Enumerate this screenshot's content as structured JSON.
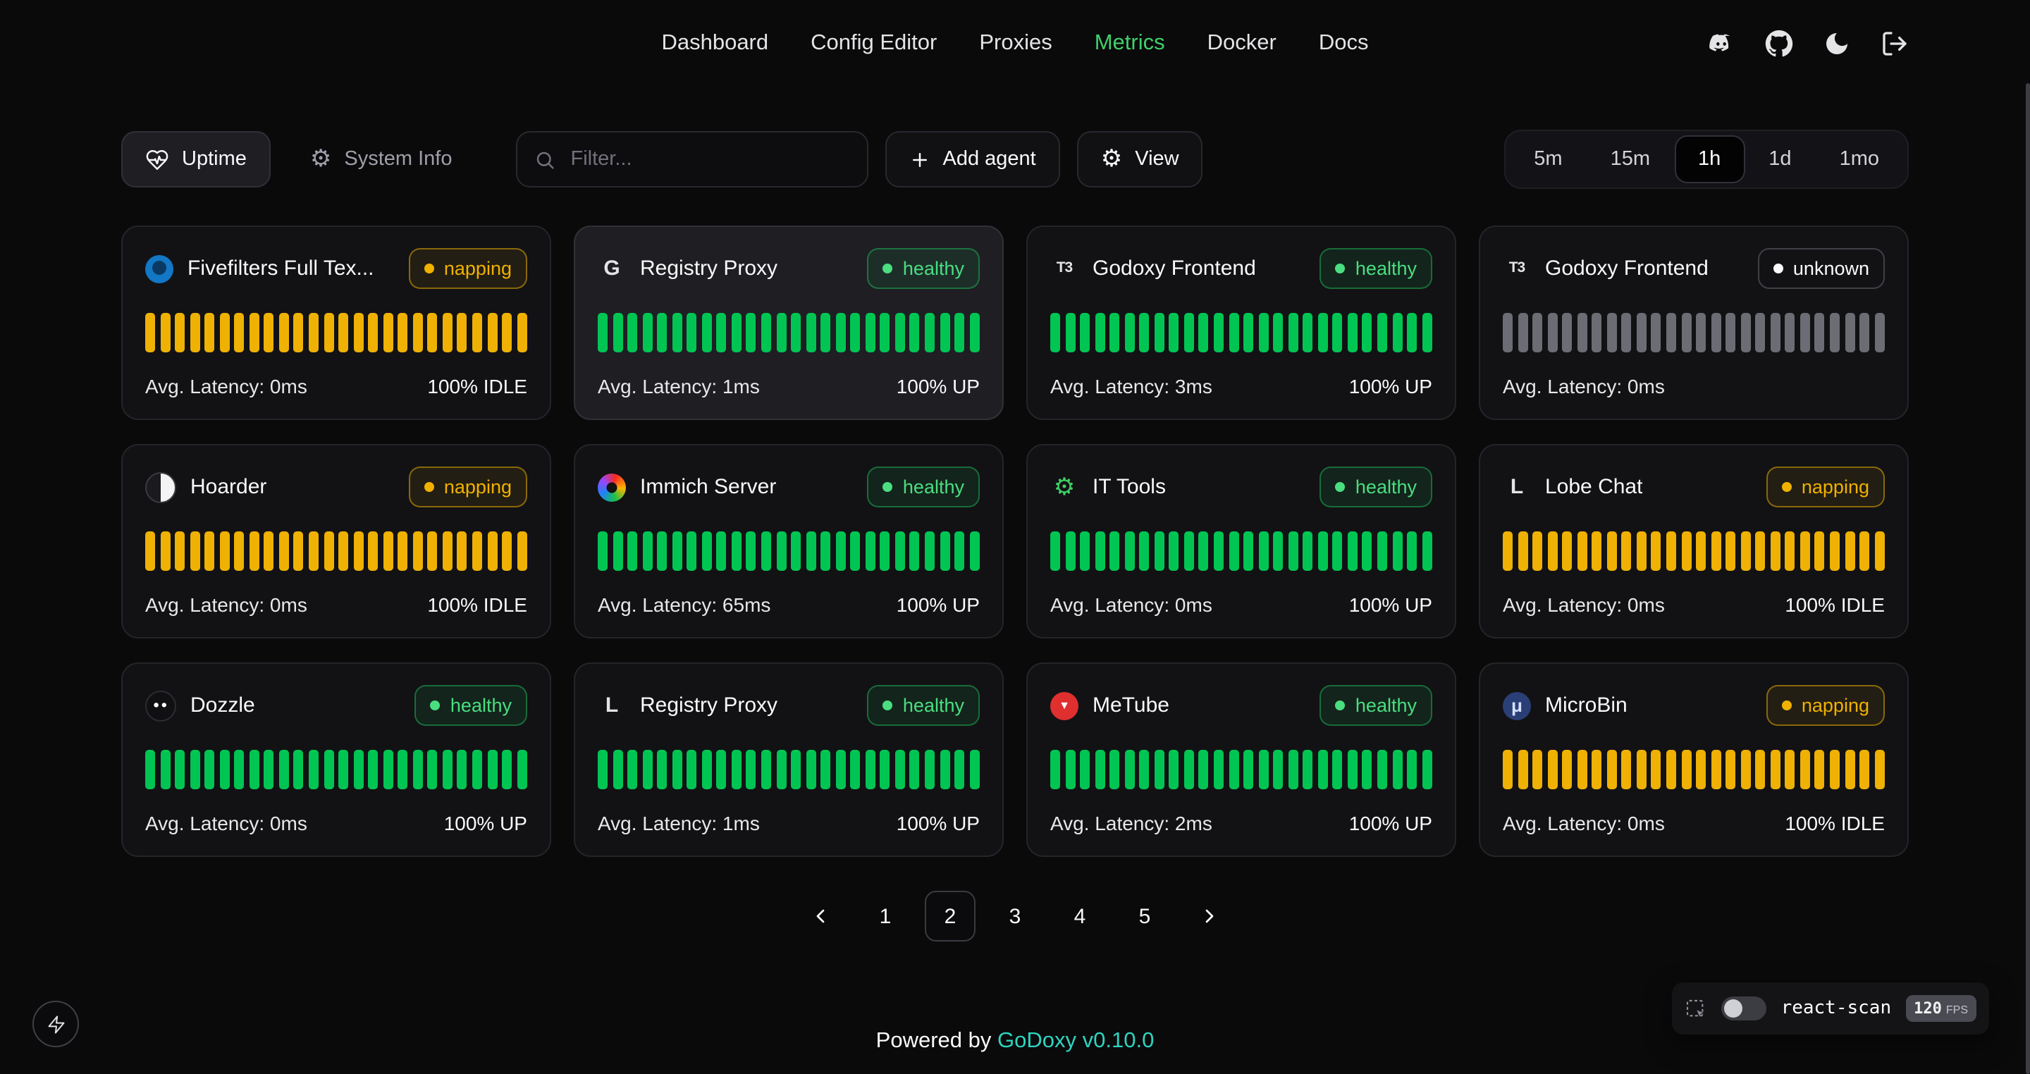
{
  "nav": {
    "items": [
      {
        "label": "Dashboard",
        "active": false
      },
      {
        "label": "Config Editor",
        "active": false
      },
      {
        "label": "Proxies",
        "active": false
      },
      {
        "label": "Metrics",
        "active": true
      },
      {
        "label": "Docker",
        "active": false
      },
      {
        "label": "Docs",
        "active": false
      }
    ],
    "icons": [
      "discord-icon",
      "github-icon",
      "theme-toggle-moon-icon",
      "logout-icon"
    ],
    "active_color": "#3fd06b"
  },
  "toolbar": {
    "tabs": [
      {
        "label": "Uptime",
        "icon": "heart-pulse-icon",
        "active": true
      },
      {
        "label": "System Info",
        "icon": "gear-icon",
        "active": false
      }
    ],
    "filter_placeholder": "Filter...",
    "add_agent_label": "Add agent",
    "view_label": "View",
    "time_ranges": [
      {
        "label": "5m",
        "active": false
      },
      {
        "label": "15m",
        "active": false
      },
      {
        "label": "1h",
        "active": true
      },
      {
        "label": "1d",
        "active": false
      },
      {
        "label": "1mo",
        "active": false
      }
    ]
  },
  "layout_hints": {
    "bars_per_card": 26
  },
  "status_colors": {
    "healthy": "#4ade80",
    "napping": "#f0b100",
    "unknown": "#fafafa",
    "bar_green": "#00c553",
    "bar_yellow": "#eeb104",
    "bar_gray": "#6c6c75"
  },
  "cards": [
    {
      "name": "Fivefilters Full Tex...",
      "status": "napping",
      "latency": "Avg. Latency: 0ms",
      "uptime": "100% IDLE",
      "bar": "yellow",
      "highlight": false,
      "icon": {
        "name": "fivefilters-logo",
        "glyph": ""
      }
    },
    {
      "name": "Registry Proxy",
      "status": "healthy",
      "latency": "Avg. Latency: 1ms",
      "uptime": "100% UP",
      "bar": "green",
      "highlight": true,
      "icon": {
        "name": "letter-icon",
        "glyph": "G"
      }
    },
    {
      "name": "Godoxy Frontend",
      "status": "healthy",
      "latency": "Avg. Latency: 3ms",
      "uptime": "100% UP",
      "bar": "green",
      "highlight": false,
      "icon": {
        "name": "t3-logo",
        "glyph": "T3"
      }
    },
    {
      "name": "Godoxy Frontend",
      "status": "unknown",
      "latency": "Avg. Latency: 0ms",
      "uptime": "",
      "bar": "gray",
      "highlight": false,
      "icon": {
        "name": "t3-logo",
        "glyph": "T3"
      }
    },
    {
      "name": "Hoarder",
      "status": "napping",
      "latency": "Avg. Latency: 0ms",
      "uptime": "100% IDLE",
      "bar": "yellow",
      "highlight": false,
      "icon": {
        "name": "hoarder-logo",
        "glyph": ""
      }
    },
    {
      "name": "Immich Server",
      "status": "healthy",
      "latency": "Avg. Latency: 65ms",
      "uptime": "100% UP",
      "bar": "green",
      "highlight": false,
      "icon": {
        "name": "immich-logo",
        "glyph": ""
      }
    },
    {
      "name": "IT Tools",
      "status": "healthy",
      "latency": "Avg. Latency: 0ms",
      "uptime": "100% UP",
      "bar": "green",
      "highlight": false,
      "icon": {
        "name": "it-tools-gear",
        "glyph": "⚙"
      }
    },
    {
      "name": "Lobe Chat",
      "status": "napping",
      "latency": "Avg. Latency: 0ms",
      "uptime": "100% IDLE",
      "bar": "yellow",
      "highlight": false,
      "icon": {
        "name": "letter-icon",
        "glyph": "L"
      }
    },
    {
      "name": "Dozzle",
      "status": "healthy",
      "latency": "Avg. Latency: 0ms",
      "uptime": "100% UP",
      "bar": "green",
      "highlight": false,
      "icon": {
        "name": "dozzle-logo",
        "glyph": ""
      }
    },
    {
      "name": "Registry Proxy",
      "status": "healthy",
      "latency": "Avg. Latency: 1ms",
      "uptime": "100% UP",
      "bar": "green",
      "highlight": false,
      "icon": {
        "name": "letter-icon",
        "glyph": "L"
      }
    },
    {
      "name": "MeTube",
      "status": "healthy",
      "latency": "Avg. Latency: 2ms",
      "uptime": "100% UP",
      "bar": "green",
      "highlight": false,
      "icon": {
        "name": "metube-logo",
        "glyph": "▼"
      }
    },
    {
      "name": "MicroBin",
      "status": "napping",
      "latency": "Avg. Latency: 0ms",
      "uptime": "100% IDLE",
      "bar": "yellow",
      "highlight": false,
      "icon": {
        "name": "microbin-mu",
        "glyph": "μ"
      }
    }
  ],
  "pagination": {
    "pages": [
      {
        "label": "1",
        "active": false
      },
      {
        "label": "2",
        "active": true
      },
      {
        "label": "3",
        "active": false
      },
      {
        "label": "4",
        "active": false
      },
      {
        "label": "5",
        "active": false
      }
    ]
  },
  "footer": {
    "prefix": "Powered by",
    "brand": "GoDoxy",
    "version": "v0.10.0",
    "link_color": "#2dd4bf"
  },
  "react_scan": {
    "label": "react-scan",
    "fps": "120",
    "fps_unit": "FPS",
    "toggle_on": false
  }
}
